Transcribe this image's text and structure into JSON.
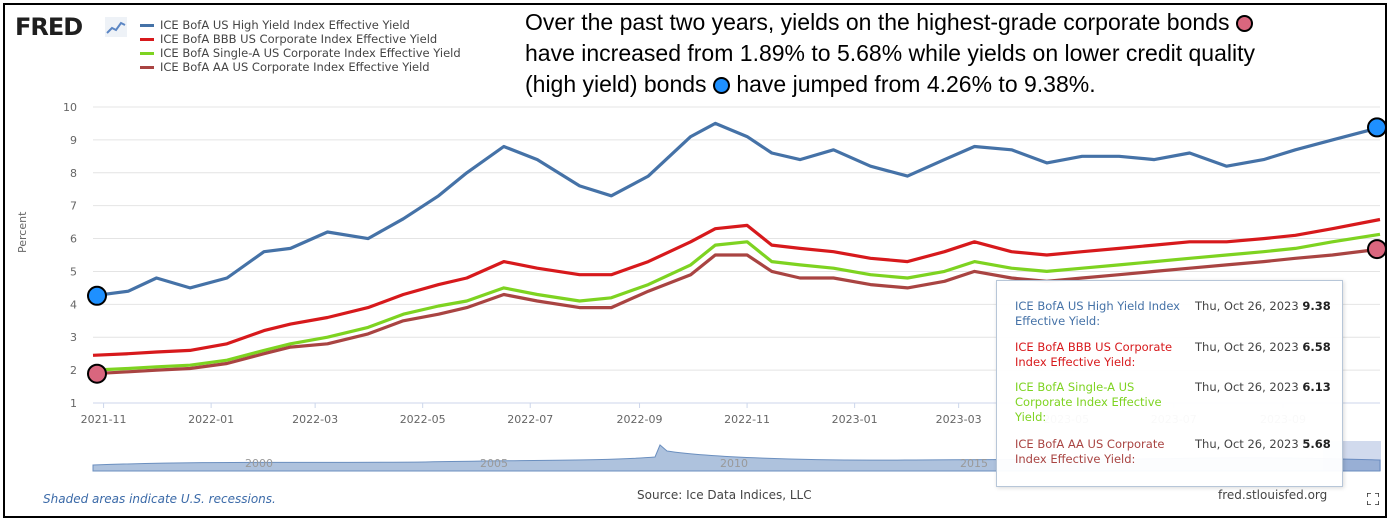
{
  "header": {
    "logo_text": "FRED",
    "logo_icon": "chart-line-icon"
  },
  "legend": [
    {
      "label": "ICE BofA US High Yield Index Effective Yield",
      "color": "#4572a7"
    },
    {
      "label": "ICE BofA BBB US Corporate Index Effective Yield",
      "color": "#d7191c"
    },
    {
      "label": "ICE BofA Single-A US Corporate Index Effective Yield",
      "color": "#7ed321"
    },
    {
      "label": "ICE BofA AA US Corporate Index Effective Yield",
      "color": "#a94442"
    }
  ],
  "annotation": {
    "line1_pre": "Over the past two years, yields on the highest-grade corporate bonds",
    "line2": "have increased from 1.89% to 5.68% while yields on lower credit quality",
    "line3_pre": "(high yield) bonds",
    "line3_post": "have jumped from 4.26% to 9.38%.",
    "pink_color": "#d9667e",
    "blue_color": "#1e90ff"
  },
  "tooltip": {
    "rows": [
      {
        "name": "ICE BofA US High Yield Index Effective Yield:",
        "date": "Thu, Oct 26, 2023",
        "value": "9.38",
        "color": "#4572a7"
      },
      {
        "name": "ICE BofA BBB US Corporate Index Effective Yield:",
        "date": "Thu, Oct 26, 2023",
        "value": "6.58",
        "color": "#d7191c"
      },
      {
        "name": "ICE BofA Single-A US Corporate Index Effective Yield:",
        "date": "Thu, Oct 26, 2023",
        "value": "6.13",
        "color": "#7ed321"
      },
      {
        "name": "ICE BofA AA US Corporate Index Effective Yield:",
        "date": "Thu, Oct 26, 2023",
        "value": "5.68",
        "color": "#a94442"
      }
    ]
  },
  "footer": {
    "recession_note": "Shaded areas indicate U.S. recessions.",
    "source": "Source: Ice Data Indices, LLC",
    "site": "fred.stlouisfed.org"
  },
  "navigator": {
    "year_labels": [
      "2000",
      "2005",
      "2010",
      "2015"
    ]
  },
  "chart_data": {
    "type": "line",
    "ylabel": "Percent",
    "ylim": [
      1,
      10
    ],
    "yticks": [
      "1",
      "2",
      "3",
      "4",
      "5",
      "6",
      "7",
      "8",
      "9",
      "10"
    ],
    "xlim": [
      "2021-10-26",
      "2023-10-26"
    ],
    "xticks": [
      "2021-11",
      "2022-01",
      "2022-03",
      "2022-05",
      "2022-07",
      "2022-09",
      "2022-11",
      "2023-01",
      "2023-03",
      "2023-05",
      "2023-07",
      "2023-09"
    ],
    "grid": true,
    "series": [
      {
        "name": "ICE BofA US High Yield Index Effective Yield",
        "color": "#4572a7",
        "x": [
          "2021-10-26",
          "2021-11-15",
          "2021-12-01",
          "2021-12-20",
          "2022-01-10",
          "2022-01-31",
          "2022-02-15",
          "2022-03-08",
          "2022-03-31",
          "2022-04-20",
          "2022-05-10",
          "2022-05-26",
          "2022-06-16",
          "2022-07-05",
          "2022-07-29",
          "2022-08-16",
          "2022-09-06",
          "2022-09-30",
          "2022-10-14",
          "2022-11-01",
          "2022-11-15",
          "2022-12-01",
          "2022-12-20",
          "2023-01-10",
          "2023-01-31",
          "2023-02-21",
          "2023-03-10",
          "2023-03-31",
          "2023-04-20",
          "2023-05-10",
          "2023-05-31",
          "2023-06-20",
          "2023-07-10",
          "2023-07-31",
          "2023-08-21",
          "2023-09-08",
          "2023-09-29",
          "2023-10-26"
        ],
        "values": [
          4.26,
          4.4,
          4.8,
          4.5,
          4.8,
          5.6,
          5.7,
          6.2,
          6.0,
          6.6,
          7.3,
          8.0,
          8.8,
          8.4,
          7.6,
          7.3,
          7.9,
          9.1,
          9.5,
          9.1,
          8.6,
          8.4,
          8.7,
          8.2,
          7.9,
          8.4,
          8.8,
          8.7,
          8.3,
          8.5,
          8.5,
          8.4,
          8.6,
          8.2,
          8.4,
          8.7,
          9.0,
          9.38
        ]
      },
      {
        "name": "ICE BofA BBB US Corporate Index Effective Yield",
        "color": "#d7191c",
        "x": [
          "2021-10-26",
          "2021-11-15",
          "2021-12-01",
          "2021-12-20",
          "2022-01-10",
          "2022-01-31",
          "2022-02-15",
          "2022-03-08",
          "2022-03-31",
          "2022-04-20",
          "2022-05-10",
          "2022-05-26",
          "2022-06-16",
          "2022-07-05",
          "2022-07-29",
          "2022-08-16",
          "2022-09-06",
          "2022-09-30",
          "2022-10-14",
          "2022-11-01",
          "2022-11-15",
          "2022-12-01",
          "2022-12-20",
          "2023-01-10",
          "2023-01-31",
          "2023-02-21",
          "2023-03-10",
          "2023-03-31",
          "2023-04-20",
          "2023-05-10",
          "2023-05-31",
          "2023-06-20",
          "2023-07-10",
          "2023-07-31",
          "2023-08-21",
          "2023-09-08",
          "2023-09-29",
          "2023-10-26"
        ],
        "values": [
          2.45,
          2.5,
          2.55,
          2.6,
          2.8,
          3.2,
          3.4,
          3.6,
          3.9,
          4.3,
          4.6,
          4.8,
          5.3,
          5.1,
          4.9,
          4.9,
          5.3,
          5.9,
          6.3,
          6.4,
          5.8,
          5.7,
          5.6,
          5.4,
          5.3,
          5.6,
          5.9,
          5.6,
          5.5,
          5.6,
          5.7,
          5.8,
          5.9,
          5.9,
          6.0,
          6.1,
          6.3,
          6.58
        ]
      },
      {
        "name": "ICE BofA Single-A US Corporate Index Effective Yield",
        "color": "#7ed321",
        "x": [
          "2021-10-26",
          "2021-11-15",
          "2021-12-01",
          "2021-12-20",
          "2022-01-10",
          "2022-01-31",
          "2022-02-15",
          "2022-03-08",
          "2022-03-31",
          "2022-04-20",
          "2022-05-10",
          "2022-05-26",
          "2022-06-16",
          "2022-07-05",
          "2022-07-29",
          "2022-08-16",
          "2022-09-06",
          "2022-09-30",
          "2022-10-14",
          "2022-11-01",
          "2022-11-15",
          "2022-12-01",
          "2022-12-20",
          "2023-01-10",
          "2023-01-31",
          "2023-02-21",
          "2023-03-10",
          "2023-03-31",
          "2023-04-20",
          "2023-05-10",
          "2023-05-31",
          "2023-06-20",
          "2023-07-10",
          "2023-07-31",
          "2023-08-21",
          "2023-09-08",
          "2023-09-29",
          "2023-10-26"
        ],
        "values": [
          2.0,
          2.05,
          2.1,
          2.15,
          2.3,
          2.6,
          2.8,
          3.0,
          3.3,
          3.7,
          3.95,
          4.1,
          4.5,
          4.3,
          4.1,
          4.2,
          4.6,
          5.2,
          5.8,
          5.9,
          5.3,
          5.2,
          5.1,
          4.9,
          4.8,
          5.0,
          5.3,
          5.1,
          5.0,
          5.1,
          5.2,
          5.3,
          5.4,
          5.5,
          5.6,
          5.7,
          5.9,
          6.13
        ]
      },
      {
        "name": "ICE BofA AA US Corporate Index Effective Yield",
        "color": "#a94442",
        "x": [
          "2021-10-26",
          "2021-11-15",
          "2021-12-01",
          "2021-12-20",
          "2022-01-10",
          "2022-01-31",
          "2022-02-15",
          "2022-03-08",
          "2022-03-31",
          "2022-04-20",
          "2022-05-10",
          "2022-05-26",
          "2022-06-16",
          "2022-07-05",
          "2022-07-29",
          "2022-08-16",
          "2022-09-06",
          "2022-09-30",
          "2022-10-14",
          "2022-11-01",
          "2022-11-15",
          "2022-12-01",
          "2022-12-20",
          "2023-01-10",
          "2023-01-31",
          "2023-02-21",
          "2023-03-10",
          "2023-03-31",
          "2023-04-20",
          "2023-05-10",
          "2023-05-31",
          "2023-06-20",
          "2023-07-10",
          "2023-07-31",
          "2023-08-21",
          "2023-09-08",
          "2023-09-29",
          "2023-10-26"
        ],
        "values": [
          1.89,
          1.95,
          2.0,
          2.05,
          2.2,
          2.5,
          2.7,
          2.8,
          3.1,
          3.5,
          3.7,
          3.9,
          4.3,
          4.1,
          3.9,
          3.9,
          4.4,
          4.9,
          5.5,
          5.5,
          5.0,
          4.8,
          4.8,
          4.6,
          4.5,
          4.7,
          5.0,
          4.8,
          4.7,
          4.8,
          4.9,
          5.0,
          5.1,
          5.2,
          5.3,
          5.4,
          5.5,
          5.68
        ]
      }
    ]
  }
}
